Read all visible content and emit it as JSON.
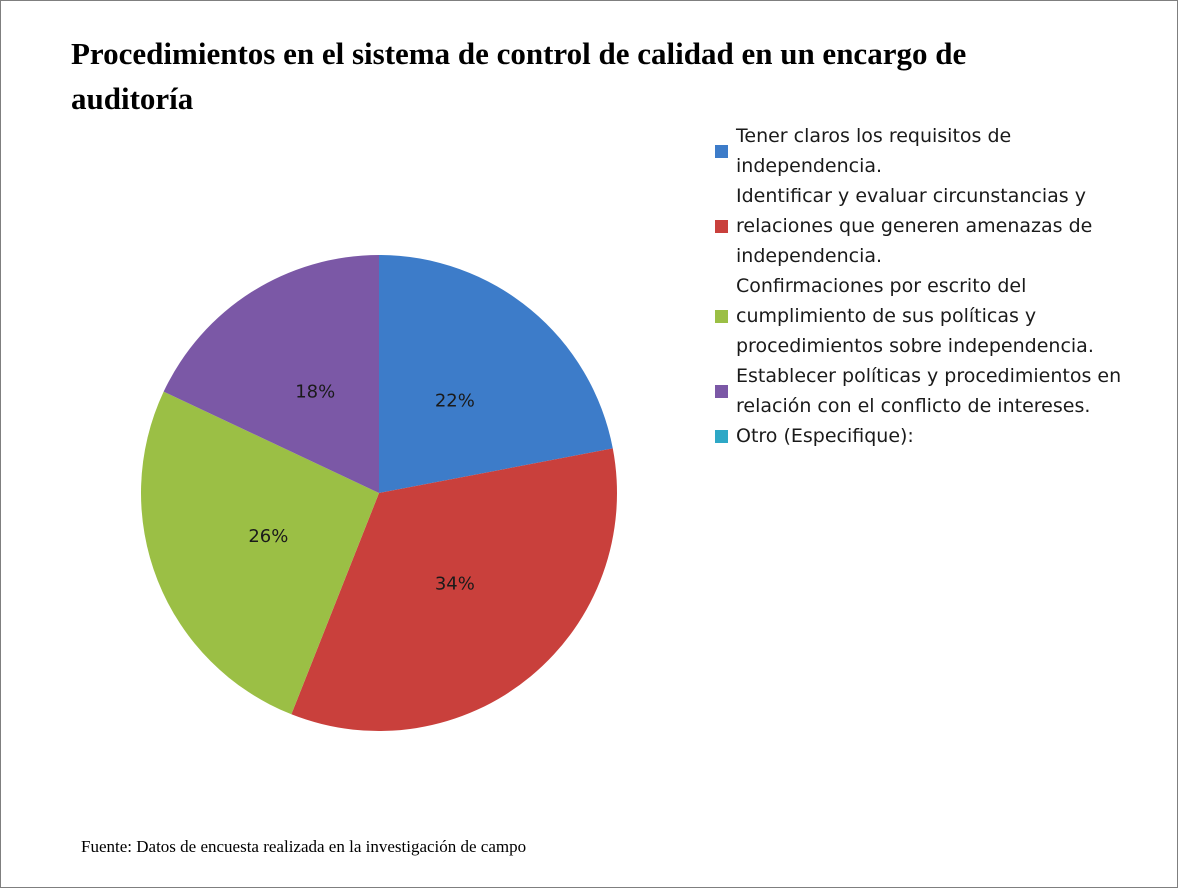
{
  "chart_data": {
    "type": "pie",
    "title": "Procedimientos en el sistema de control de calidad en un encargo de auditoría",
    "categories": [
      "Tener claros los requisitos de independencia.",
      "Identificar y evaluar circunstancias y relaciones que generen amenazas de independencia.",
      "Confirmaciones por escrito del cumplimiento de sus políticas y procedimientos sobre independencia.",
      "Establecer políticas y procedimientos en relación con el conflicto de intereses.",
      "Otro (Especifique):"
    ],
    "values": [
      22,
      34,
      26,
      18,
      0
    ],
    "value_labels": [
      "22%",
      "34%",
      "26%",
      "18%",
      null
    ],
    "colors": [
      "#3d7cc9",
      "#c9403c",
      "#9bbf45",
      "#7b58a6",
      "#2ea8c6"
    ],
    "source": "Fuente: Datos de encuesta realizada en la investigación de campo"
  }
}
